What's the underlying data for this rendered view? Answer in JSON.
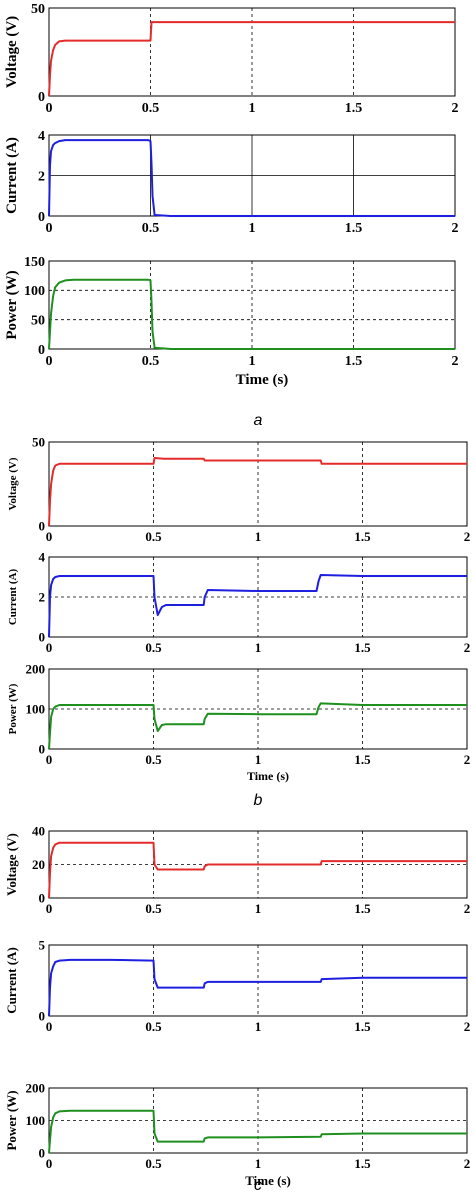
{
  "colors": {
    "voltage": "#e32b2b",
    "current": "#1f1fe0",
    "power": "#1f8f1f",
    "grid": "#000000",
    "frame": "#000000"
  },
  "chart_data": [
    {
      "type": "line",
      "group": "a",
      "xlabel": "",
      "ylabel": "Voltage (V)",
      "xlim": [
        0,
        2
      ],
      "ylim": [
        0,
        50
      ],
      "xticks": [
        "0",
        "0.5",
        "1",
        "1.5",
        "2"
      ],
      "yticks": [
        "0",
        "50"
      ],
      "grid": "dashed",
      "series": [
        {
          "color": "voltage",
          "x": [
            0,
            0.005,
            0.01,
            0.02,
            0.03,
            0.05,
            0.08,
            0.12,
            0.2,
            0.3,
            0.4,
            0.49,
            0.5,
            0.505,
            0.6,
            1,
            1.5,
            2
          ],
          "y": [
            0,
            12,
            20,
            26,
            29,
            31,
            31.5,
            31.5,
            31.5,
            31.5,
            31.5,
            31.5,
            31.5,
            42,
            42,
            42,
            42,
            42
          ]
        }
      ]
    },
    {
      "type": "line",
      "group": "a",
      "xlabel": "",
      "ylabel": "Current (A)",
      "xlim": [
        0,
        2
      ],
      "ylim": [
        0,
        4
      ],
      "xticks": [
        "0",
        "0.5",
        "1",
        "1.5",
        "2"
      ],
      "yticks": [
        "0",
        "2",
        "4"
      ],
      "grid": "solid",
      "series": [
        {
          "color": "current",
          "x": [
            0,
            0.005,
            0.01,
            0.02,
            0.03,
            0.05,
            0.08,
            0.12,
            0.3,
            0.49,
            0.5,
            0.505,
            0.51,
            0.52,
            0.6,
            1,
            1.5,
            2
          ],
          "y": [
            0,
            2.5,
            3.2,
            3.5,
            3.6,
            3.7,
            3.75,
            3.75,
            3.75,
            3.75,
            3.7,
            2.6,
            1.0,
            0.05,
            0,
            0,
            0,
            0
          ]
        }
      ]
    },
    {
      "type": "line",
      "group": "a",
      "xlabel": "Time (s)",
      "ylabel": "Power (W)",
      "xlim": [
        0,
        2
      ],
      "ylim": [
        0,
        150
      ],
      "xticks": [
        "0",
        "0.5",
        "1",
        "1.5",
        "2"
      ],
      "yticks": [
        "0",
        "50",
        "100",
        "150"
      ],
      "grid": "dashed",
      "series": [
        {
          "color": "power",
          "x": [
            0,
            0.005,
            0.01,
            0.02,
            0.03,
            0.05,
            0.08,
            0.12,
            0.3,
            0.49,
            0.5,
            0.505,
            0.51,
            0.52,
            0.6,
            1,
            1.5,
            2
          ],
          "y": [
            0,
            30,
            60,
            90,
            105,
            113,
            117,
            118,
            118,
            118,
            117,
            80,
            30,
            2,
            0,
            0,
            0,
            0
          ]
        }
      ]
    },
    {
      "type": "line",
      "group": "b",
      "xlabel": "",
      "ylabel": "Voltage (V)",
      "xlim": [
        0,
        2
      ],
      "ylim": [
        0,
        50
      ],
      "xticks": [
        "0",
        "0.5",
        "1",
        "1.5",
        "2"
      ],
      "yticks": [
        "0",
        "50"
      ],
      "grid": "dashed",
      "series": [
        {
          "color": "voltage",
          "x": [
            0,
            0.005,
            0.01,
            0.02,
            0.03,
            0.05,
            0.08,
            0.3,
            0.5,
            0.505,
            0.55,
            0.74,
            0.745,
            1.0,
            1.3,
            1.305,
            1.5,
            2
          ],
          "y": [
            0,
            15,
            25,
            33,
            36,
            37,
            37,
            37,
            37,
            40.5,
            40,
            40,
            39,
            39,
            39,
            37,
            37,
            37
          ]
        }
      ]
    },
    {
      "type": "line",
      "group": "b",
      "xlabel": "",
      "ylabel": "Current (A)",
      "xlim": [
        0,
        2
      ],
      "ylim": [
        0,
        4
      ],
      "xticks": [
        "0",
        "0.5",
        "1",
        "1.5",
        "2"
      ],
      "yticks": [
        "0",
        "2",
        "4"
      ],
      "grid": "dashed",
      "series": [
        {
          "color": "current",
          "x": [
            0,
            0.005,
            0.01,
            0.02,
            0.03,
            0.05,
            0.1,
            0.3,
            0.5,
            0.505,
            0.52,
            0.54,
            0.56,
            0.74,
            0.745,
            0.76,
            1.0,
            1.28,
            1.29,
            1.3,
            1.5,
            2
          ],
          "y": [
            0,
            2,
            2.6,
            2.9,
            3.0,
            3.05,
            3.05,
            3.05,
            3.05,
            2.0,
            1.1,
            1.5,
            1.6,
            1.6,
            2.0,
            2.35,
            2.3,
            2.3,
            2.8,
            3.1,
            3.05,
            3.05
          ]
        }
      ]
    },
    {
      "type": "line",
      "group": "b",
      "xlabel": "Time (s)",
      "ylabel": "Power (W)",
      "xlim": [
        0,
        2
      ],
      "ylim": [
        0,
        200
      ],
      "xticks": [
        "0",
        "0.5",
        "1",
        "1.5",
        "2"
      ],
      "yticks": [
        "0",
        "100",
        "200"
      ],
      "grid": "dashed",
      "series": [
        {
          "color": "power",
          "x": [
            0,
            0.005,
            0.01,
            0.02,
            0.03,
            0.05,
            0.1,
            0.3,
            0.5,
            0.505,
            0.52,
            0.54,
            0.56,
            0.74,
            0.745,
            0.76,
            1.0,
            1.28,
            1.29,
            1.3,
            1.5,
            2
          ],
          "y": [
            0,
            40,
            80,
            100,
            106,
            110,
            110,
            110,
            110,
            75,
            45,
            60,
            62,
            62,
            75,
            88,
            87,
            87,
            105,
            114,
            110,
            110
          ]
        }
      ]
    },
    {
      "type": "line",
      "group": "c",
      "xlabel": "",
      "ylabel": "Voltage (V)",
      "xlim": [
        0,
        2
      ],
      "ylim": [
        0,
        40
      ],
      "xticks": [
        "0",
        "0.5",
        "1",
        "1.5",
        "2"
      ],
      "yticks": [
        "0",
        "20",
        "40"
      ],
      "grid": "dashed",
      "series": [
        {
          "color": "voltage",
          "x": [
            0,
            0.005,
            0.01,
            0.02,
            0.03,
            0.05,
            0.1,
            0.3,
            0.5,
            0.505,
            0.52,
            0.74,
            0.745,
            0.76,
            1.0,
            1.3,
            1.305,
            1.5,
            2
          ],
          "y": [
            0,
            15,
            25,
            30,
            32,
            33,
            33,
            33,
            33,
            20,
            17,
            17,
            19,
            20,
            20,
            20,
            22,
            22,
            22
          ]
        }
      ]
    },
    {
      "type": "line",
      "group": "c",
      "xlabel": "",
      "ylabel": "Current (A)",
      "xlim": [
        0,
        2
      ],
      "ylim": [
        0,
        5
      ],
      "xticks": [
        "0",
        "0.5",
        "1",
        "1.5",
        "2"
      ],
      "yticks": [
        "0",
        "5"
      ],
      "grid": "dashed",
      "series": [
        {
          "color": "current",
          "x": [
            0,
            0.005,
            0.01,
            0.02,
            0.03,
            0.05,
            0.1,
            0.3,
            0.5,
            0.505,
            0.52,
            0.74,
            0.745,
            0.76,
            1.0,
            1.3,
            1.305,
            1.5,
            2
          ],
          "y": [
            0,
            2,
            3,
            3.5,
            3.8,
            3.9,
            3.95,
            3.95,
            3.9,
            2.6,
            2.0,
            2.0,
            2.3,
            2.4,
            2.4,
            2.4,
            2.6,
            2.7,
            2.7
          ]
        }
      ]
    },
    {
      "type": "line",
      "group": "c",
      "xlabel": "Time (s)",
      "ylabel": "Power (W)",
      "xlim": [
        0,
        2
      ],
      "ylim": [
        0,
        200
      ],
      "xticks": [
        "0",
        "0.5",
        "1",
        "1.5",
        "2"
      ],
      "yticks": [
        "0",
        "100",
        "200"
      ],
      "grid": "dashed",
      "series": [
        {
          "color": "power",
          "x": [
            0,
            0.005,
            0.01,
            0.02,
            0.03,
            0.05,
            0.1,
            0.3,
            0.5,
            0.505,
            0.52,
            0.74,
            0.745,
            0.76,
            1.0,
            1.3,
            1.305,
            1.5,
            2
          ],
          "y": [
            0,
            40,
            80,
            110,
            122,
            128,
            130,
            130,
            130,
            60,
            35,
            35,
            45,
            48,
            48,
            50,
            58,
            60,
            60
          ]
        }
      ]
    }
  ],
  "captions": [
    "a",
    "b",
    "c"
  ]
}
